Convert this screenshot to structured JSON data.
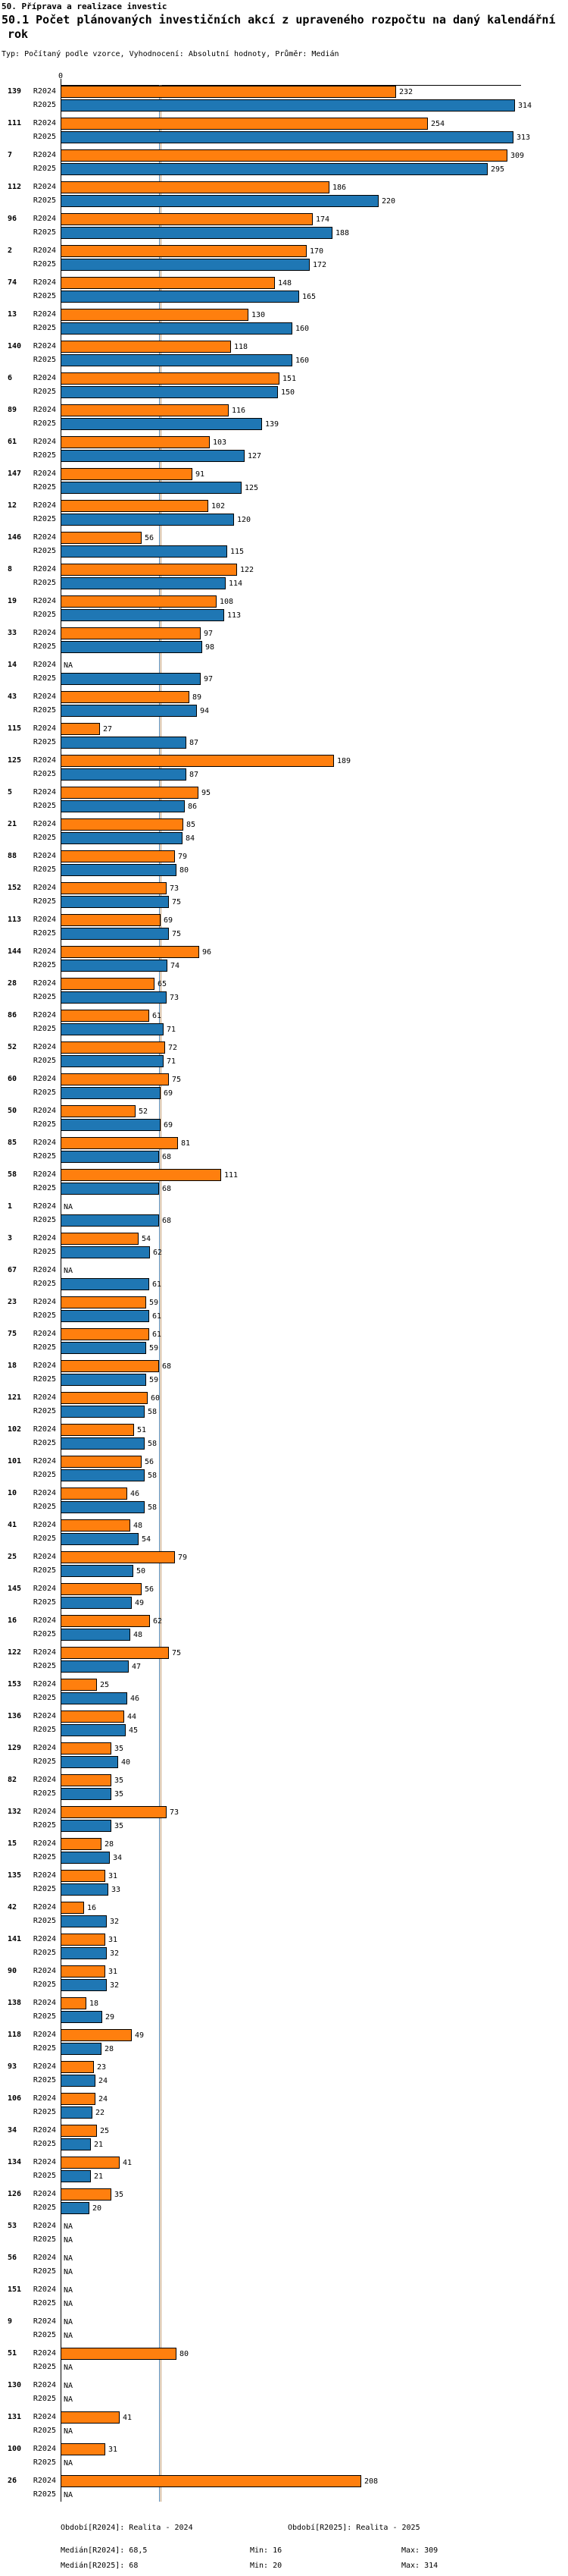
{
  "header": {
    "title": "50. Příprava a realizace investic",
    "subtitle": "50.1 Počet plánovaných investičních akcí z upraveného rozpočtu na daný kalendářní",
    "subtitle_wrap": "rok",
    "meta": "Typ: Počítaný podle vzorce, Vyhodnocení: Absolutní hodnoty, Průměr: Medián"
  },
  "chart_data": {
    "type": "bar",
    "orientation": "horizontal",
    "title": "50.1 Počet plánovaných investičních akcí z upraveného rozpočtu na daný kalendářní rok",
    "x_axis": {
      "zero_label": "0",
      "range": [
        0,
        318
      ],
      "grid": false
    },
    "legend_position": "footer",
    "na_label": "NA",
    "series": [
      {
        "name": "R2024",
        "period": "Realita - 2024",
        "color": "#ff7f0e",
        "median": 68.5,
        "min": 16,
        "max": 309,
        "median_line_color": "#5b87ad"
      },
      {
        "name": "R2025",
        "period": "Realita - 2025",
        "color": "#1f77b4",
        "median": 68,
        "min": 20,
        "max": 314,
        "median_line_color": "#c0966a"
      }
    ],
    "groups": [
      {
        "label": "139",
        "R2024": 232,
        "R2025": 314
      },
      {
        "label": "111",
        "R2024": 254,
        "R2025": 313
      },
      {
        "label": "7",
        "R2024": 309,
        "R2025": 295
      },
      {
        "label": "112",
        "R2024": 186,
        "R2025": 220
      },
      {
        "label": "96",
        "R2024": 174,
        "R2025": 188
      },
      {
        "label": "2",
        "R2024": 170,
        "R2025": 172
      },
      {
        "label": "74",
        "R2024": 148,
        "R2025": 165
      },
      {
        "label": "13",
        "R2024": 130,
        "R2025": 160
      },
      {
        "label": "140",
        "R2024": 118,
        "R2025": 160
      },
      {
        "label": "6",
        "R2024": 151,
        "R2025": 150
      },
      {
        "label": "89",
        "R2024": 116,
        "R2025": 139
      },
      {
        "label": "61",
        "R2024": 103,
        "R2025": 127
      },
      {
        "label": "147",
        "R2024": 91,
        "R2025": 125
      },
      {
        "label": "12",
        "R2024": 102,
        "R2025": 120
      },
      {
        "label": "146",
        "R2024": 56,
        "R2025": 115
      },
      {
        "label": "8",
        "R2024": 122,
        "R2025": 114
      },
      {
        "label": "19",
        "R2024": 108,
        "R2025": 113
      },
      {
        "label": "33",
        "R2024": 97,
        "R2025": 98
      },
      {
        "label": "14",
        "R2024": null,
        "R2025": 97
      },
      {
        "label": "43",
        "R2024": 89,
        "R2025": 94
      },
      {
        "label": "115",
        "R2024": 27,
        "R2025": 87
      },
      {
        "label": "125",
        "R2024": 189,
        "R2025": 87
      },
      {
        "label": "5",
        "R2024": 95,
        "R2025": 86
      },
      {
        "label": "21",
        "R2024": 85,
        "R2025": 84
      },
      {
        "label": "88",
        "R2024": 79,
        "R2025": 80
      },
      {
        "label": "152",
        "R2024": 73,
        "R2025": 75
      },
      {
        "label": "113",
        "R2024": 69,
        "R2025": 75
      },
      {
        "label": "144",
        "R2024": 96,
        "R2025": 74
      },
      {
        "label": "28",
        "R2024": 65,
        "R2025": 73
      },
      {
        "label": "86",
        "R2024": 61,
        "R2025": 71
      },
      {
        "label": "52",
        "R2024": 72,
        "R2025": 71
      },
      {
        "label": "60",
        "R2024": 75,
        "R2025": 69
      },
      {
        "label": "50",
        "R2024": 52,
        "R2025": 69
      },
      {
        "label": "85",
        "R2024": 81,
        "R2025": 68
      },
      {
        "label": "58",
        "R2024": 111,
        "R2025": 68
      },
      {
        "label": "1",
        "R2024": null,
        "R2025": 68
      },
      {
        "label": "3",
        "R2024": 54,
        "R2025": 62
      },
      {
        "label": "67",
        "R2024": null,
        "R2025": 61
      },
      {
        "label": "23",
        "R2024": 59,
        "R2025": 61
      },
      {
        "label": "75",
        "R2024": 61,
        "R2025": 59
      },
      {
        "label": "18",
        "R2024": 68,
        "R2025": 59
      },
      {
        "label": "121",
        "R2024": 60,
        "R2025": 58
      },
      {
        "label": "102",
        "R2024": 51,
        "R2025": 58
      },
      {
        "label": "101",
        "R2024": 56,
        "R2025": 58
      },
      {
        "label": "10",
        "R2024": 46,
        "R2025": 58
      },
      {
        "label": "41",
        "R2024": 48,
        "R2025": 54
      },
      {
        "label": "25",
        "R2024": 79,
        "R2025": 50
      },
      {
        "label": "145",
        "R2024": 56,
        "R2025": 49
      },
      {
        "label": "16",
        "R2024": 62,
        "R2025": 48
      },
      {
        "label": "122",
        "R2024": 75,
        "R2025": 47
      },
      {
        "label": "153",
        "R2024": 25,
        "R2025": 46
      },
      {
        "label": "136",
        "R2024": 44,
        "R2025": 45
      },
      {
        "label": "129",
        "R2024": 35,
        "R2025": 40
      },
      {
        "label": "82",
        "R2024": 35,
        "R2025": 35
      },
      {
        "label": "132",
        "R2024": 73,
        "R2025": 35
      },
      {
        "label": "15",
        "R2024": 28,
        "R2025": 34
      },
      {
        "label": "135",
        "R2024": 31,
        "R2025": 33
      },
      {
        "label": "42",
        "R2024": 16,
        "R2025": 32
      },
      {
        "label": "141",
        "R2024": 31,
        "R2025": 32
      },
      {
        "label": "90",
        "R2024": 31,
        "R2025": 32
      },
      {
        "label": "138",
        "R2024": 18,
        "R2025": 29
      },
      {
        "label": "118",
        "R2024": 49,
        "R2025": 28
      },
      {
        "label": "93",
        "R2024": 23,
        "R2025": 24
      },
      {
        "label": "106",
        "R2024": 24,
        "R2025": 22
      },
      {
        "label": "34",
        "R2024": 25,
        "R2025": 21
      },
      {
        "label": "134",
        "R2024": 41,
        "R2025": 21
      },
      {
        "label": "126",
        "R2024": 35,
        "R2025": 20
      },
      {
        "label": "53",
        "R2024": null,
        "R2025": null
      },
      {
        "label": "56",
        "R2024": null,
        "R2025": null
      },
      {
        "label": "151",
        "R2024": null,
        "R2025": null
      },
      {
        "label": "9",
        "R2024": null,
        "R2025": null
      },
      {
        "label": "51",
        "R2024": 80,
        "R2025": null
      },
      {
        "label": "130",
        "R2024": null,
        "R2025": null
      },
      {
        "label": "131",
        "R2024": 41,
        "R2025": null
      },
      {
        "label": "100",
        "R2024": 31,
        "R2025": null
      },
      {
        "label": "26",
        "R2024": 208,
        "R2025": null
      }
    ]
  },
  "footer": {
    "period_r2024": "Období[R2024]: Realita - 2024",
    "period_r2025": "Období[R2025]: Realita - 2025",
    "median_r2024": "Medián[R2024]: 68,5",
    "min_r2024": "Min: 16",
    "max_r2024": "Max: 309",
    "median_r2025": "Medián[R2025]: 68",
    "min_r2025": "Min: 20",
    "max_r2025": "Max: 314"
  }
}
